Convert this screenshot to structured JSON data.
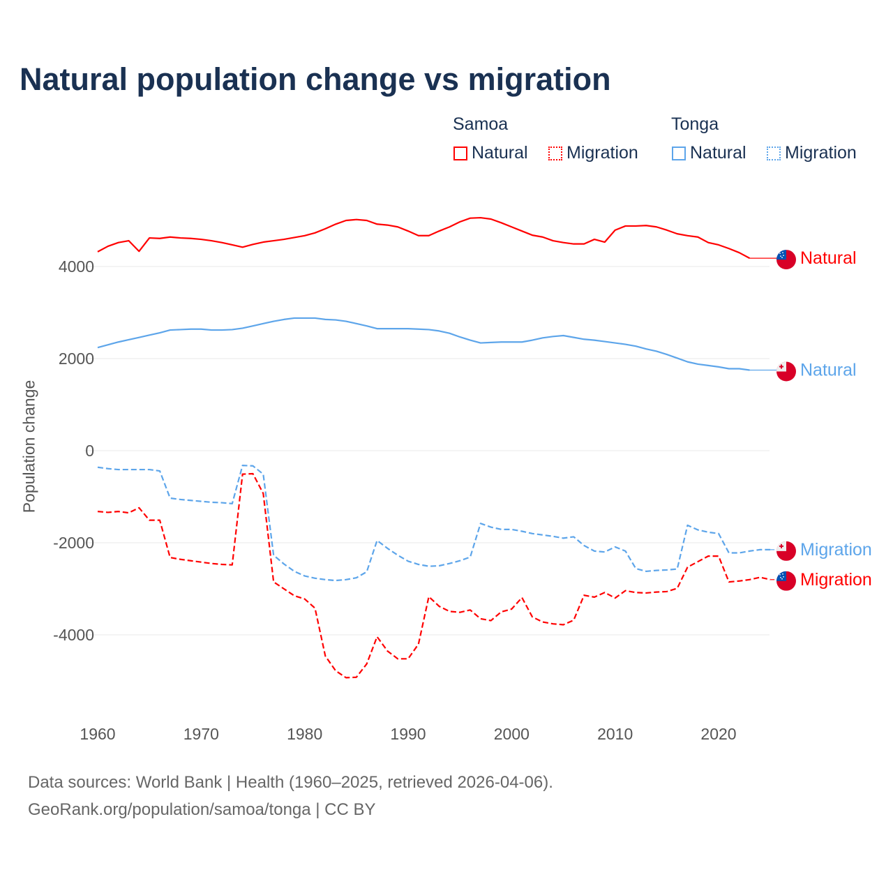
{
  "title": "Natural population change vs migration",
  "legend": {
    "groups": [
      {
        "name": "Samoa",
        "items": [
          "Natural",
          "Migration"
        ]
      },
      {
        "name": "Tonga",
        "items": [
          "Natural",
          "Migration"
        ]
      }
    ]
  },
  "colors": {
    "samoa": "#ff0000",
    "tonga": "#5da5ea",
    "grid": "#e8e8e8",
    "text": "#1a3152"
  },
  "footer": {
    "line1": "Data sources: World Bank | Health (1960–2025, retrieved 2026-04-06).",
    "line2": "GeoRank.org/population/samoa/tonga | CC BY"
  },
  "chart_data": {
    "type": "line",
    "title": "Natural population change vs migration",
    "xlabel": "",
    "ylabel": "Population change",
    "xlim": [
      1960,
      2025
    ],
    "ylim": [
      -5500,
      5500
    ],
    "xticks": [
      "1960",
      "1970",
      "1980",
      "1990",
      "2000",
      "2010",
      "2020"
    ],
    "yticks": [
      "4000",
      "2000",
      "0",
      "-2000",
      "-4000"
    ],
    "grid": true,
    "legend_position": "top-right",
    "x_start": 1960,
    "series": [
      {
        "name": "Samoa Natural",
        "country": "samoa",
        "style": "solid",
        "end_label": "Natural",
        "values": [
          4320,
          4440,
          4520,
          4560,
          4330,
          4620,
          4610,
          4640,
          4620,
          4610,
          4590,
          4560,
          4520,
          4470,
          4420,
          4480,
          4530,
          4560,
          4590,
          4630,
          4670,
          4730,
          4820,
          4920,
          5000,
          5020,
          5000,
          4920,
          4900,
          4860,
          4770,
          4670,
          4670,
          4770,
          4860,
          4970,
          5050,
          5060,
          5030,
          4950,
          4860,
          4770,
          4680,
          4640,
          4560,
          4520,
          4490,
          4490,
          4590,
          4530,
          4790,
          4880,
          4880,
          4890,
          4860,
          4790,
          4710,
          4670,
          4640,
          4520,
          4470,
          4390,
          4300,
          4180
        ]
      },
      {
        "name": "Tonga Natural",
        "country": "tonga",
        "style": "solid",
        "end_label": "Natural",
        "values": [
          2240,
          2300,
          2360,
          2410,
          2460,
          2510,
          2560,
          2620,
          2630,
          2640,
          2640,
          2620,
          2620,
          2630,
          2660,
          2710,
          2760,
          2810,
          2850,
          2880,
          2880,
          2880,
          2850,
          2840,
          2810,
          2760,
          2710,
          2650,
          2650,
          2650,
          2650,
          2640,
          2630,
          2600,
          2550,
          2470,
          2400,
          2340,
          2350,
          2360,
          2360,
          2360,
          2400,
          2450,
          2480,
          2500,
          2460,
          2420,
          2400,
          2370,
          2340,
          2310,
          2270,
          2210,
          2160,
          2090,
          2010,
          1930,
          1880,
          1850,
          1820,
          1780,
          1780,
          1750
        ]
      },
      {
        "name": "Tonga Migration",
        "country": "tonga",
        "style": "dashed",
        "end_label": "Migration",
        "values": [
          -360,
          -390,
          -410,
          -410,
          -410,
          -410,
          -440,
          -1030,
          -1060,
          -1080,
          -1100,
          -1120,
          -1130,
          -1150,
          -320,
          -330,
          -510,
          -2270,
          -2460,
          -2620,
          -2720,
          -2770,
          -2800,
          -2820,
          -2800,
          -2760,
          -2630,
          -1950,
          -2120,
          -2270,
          -2400,
          -2470,
          -2510,
          -2500,
          -2450,
          -2390,
          -2310,
          -1580,
          -1660,
          -1710,
          -1710,
          -1750,
          -1800,
          -1830,
          -1860,
          -1900,
          -1870,
          -2060,
          -2180,
          -2200,
          -2090,
          -2180,
          -2560,
          -2620,
          -2600,
          -2590,
          -2570,
          -1620,
          -1720,
          -1770,
          -1800,
          -2220,
          -2220,
          -2180,
          -2150,
          -2150
        ]
      },
      {
        "name": "Samoa Migration",
        "country": "samoa",
        "style": "dashed",
        "end_label": "Migration",
        "values": [
          -1320,
          -1340,
          -1320,
          -1350,
          -1240,
          -1510,
          -1510,
          -2320,
          -2360,
          -2390,
          -2420,
          -2450,
          -2470,
          -2480,
          -510,
          -500,
          -930,
          -2850,
          -3000,
          -3150,
          -3220,
          -3420,
          -4460,
          -4780,
          -4930,
          -4920,
          -4630,
          -4040,
          -4350,
          -4520,
          -4520,
          -4200,
          -3170,
          -3380,
          -3490,
          -3510,
          -3460,
          -3650,
          -3690,
          -3500,
          -3440,
          -3190,
          -3610,
          -3720,
          -3760,
          -3780,
          -3680,
          -3140,
          -3180,
          -3080,
          -3200,
          -3040,
          -3080,
          -3090,
          -3070,
          -3060,
          -2990,
          -2530,
          -2410,
          -2290,
          -2290,
          -2850,
          -2830,
          -2800,
          -2750,
          -2800
        ]
      }
    ]
  }
}
